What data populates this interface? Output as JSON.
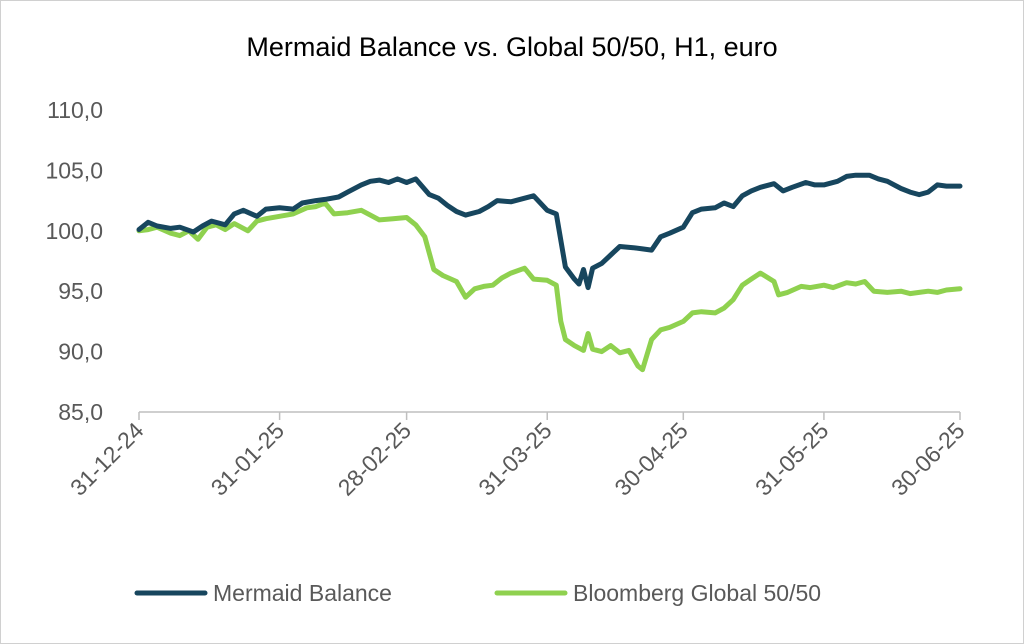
{
  "chart_data": {
    "type": "line",
    "title": "Mermaid Balance vs. Global 50/50, H1, euro",
    "ylim": [
      85,
      110
    ],
    "y_ticks": [
      "110,0",
      "105,0",
      "100,0",
      "95,0",
      "90,0",
      "85,0"
    ],
    "y_tick_values": [
      110,
      105,
      100,
      95,
      90,
      85
    ],
    "x_range": [
      "2024-12-31",
      "2025-06-30"
    ],
    "x_ticks": [
      "31-12-24",
      "31-01-25",
      "28-02-25",
      "31-03-25",
      "30-04-25",
      "31-05-25",
      "30-06-25"
    ],
    "x_tick_dates": [
      "2024-12-31",
      "2025-01-31",
      "2025-02-28",
      "2025-03-31",
      "2025-04-30",
      "2025-05-31",
      "2025-06-30"
    ],
    "grid": false,
    "legend_position": "bottom",
    "series": [
      {
        "name": "Mermaid Balance",
        "color": "#17465E",
        "points": [
          [
            "2024-12-31",
            100.1
          ],
          [
            "2025-01-02",
            100.7
          ],
          [
            "2025-01-04",
            100.4
          ],
          [
            "2025-01-07",
            100.2
          ],
          [
            "2025-01-09",
            100.3
          ],
          [
            "2025-01-12",
            99.9
          ],
          [
            "2025-01-14",
            100.4
          ],
          [
            "2025-01-16",
            100.8
          ],
          [
            "2025-01-19",
            100.5
          ],
          [
            "2025-01-21",
            101.4
          ],
          [
            "2025-01-23",
            101.7
          ],
          [
            "2025-01-26",
            101.2
          ],
          [
            "2025-01-28",
            101.8
          ],
          [
            "2025-01-31",
            101.9
          ],
          [
            "2025-02-03",
            101.8
          ],
          [
            "2025-02-05",
            102.3
          ],
          [
            "2025-02-08",
            102.5
          ],
          [
            "2025-02-10",
            102.6
          ],
          [
            "2025-02-13",
            102.8
          ],
          [
            "2025-02-15",
            103.2
          ],
          [
            "2025-02-18",
            103.8
          ],
          [
            "2025-02-20",
            104.1
          ],
          [
            "2025-02-22",
            104.2
          ],
          [
            "2025-02-24",
            104.0
          ],
          [
            "2025-02-26",
            104.3
          ],
          [
            "2025-02-28",
            104.0
          ],
          [
            "2025-03-02",
            104.3
          ],
          [
            "2025-03-05",
            103.0
          ],
          [
            "2025-03-07",
            102.7
          ],
          [
            "2025-03-09",
            102.1
          ],
          [
            "2025-03-11",
            101.6
          ],
          [
            "2025-03-13",
            101.3
          ],
          [
            "2025-03-16",
            101.6
          ],
          [
            "2025-03-18",
            102.0
          ],
          [
            "2025-03-20",
            102.5
          ],
          [
            "2025-03-23",
            102.4
          ],
          [
            "2025-03-26",
            102.7
          ],
          [
            "2025-03-28",
            102.9
          ],
          [
            "2025-03-31",
            101.7
          ],
          [
            "2025-04-02",
            101.4
          ],
          [
            "2025-04-04",
            97.0
          ],
          [
            "2025-04-06",
            96.0
          ],
          [
            "2025-04-07",
            95.6
          ],
          [
            "2025-04-08",
            96.8
          ],
          [
            "2025-04-09",
            95.3
          ],
          [
            "2025-04-10",
            96.9
          ],
          [
            "2025-04-12",
            97.3
          ],
          [
            "2025-04-14",
            98.0
          ],
          [
            "2025-04-16",
            98.7
          ],
          [
            "2025-04-19",
            98.6
          ],
          [
            "2025-04-21",
            98.5
          ],
          [
            "2025-04-23",
            98.4
          ],
          [
            "2025-04-25",
            99.5
          ],
          [
            "2025-04-27",
            99.8
          ],
          [
            "2025-04-30",
            100.3
          ],
          [
            "2025-05-02",
            101.5
          ],
          [
            "2025-05-04",
            101.8
          ],
          [
            "2025-05-07",
            101.9
          ],
          [
            "2025-05-09",
            102.3
          ],
          [
            "2025-05-11",
            102.0
          ],
          [
            "2025-05-13",
            102.9
          ],
          [
            "2025-05-15",
            103.3
          ],
          [
            "2025-05-17",
            103.6
          ],
          [
            "2025-05-20",
            103.9
          ],
          [
            "2025-05-22",
            103.3
          ],
          [
            "2025-05-24",
            103.6
          ],
          [
            "2025-05-27",
            104.0
          ],
          [
            "2025-05-29",
            103.8
          ],
          [
            "2025-05-31",
            103.8
          ],
          [
            "2025-06-03",
            104.1
          ],
          [
            "2025-06-05",
            104.5
          ],
          [
            "2025-06-07",
            104.6
          ],
          [
            "2025-06-10",
            104.6
          ],
          [
            "2025-06-12",
            104.3
          ],
          [
            "2025-06-14",
            104.1
          ],
          [
            "2025-06-17",
            103.5
          ],
          [
            "2025-06-19",
            103.2
          ],
          [
            "2025-06-21",
            103.0
          ],
          [
            "2025-06-23",
            103.2
          ],
          [
            "2025-06-25",
            103.8
          ],
          [
            "2025-06-27",
            103.7
          ],
          [
            "2025-06-30",
            103.7
          ]
        ]
      },
      {
        "name": "Bloomberg Global 50/50",
        "color": "#8FD14F",
        "points": [
          [
            "2024-12-31",
            100.0
          ],
          [
            "2025-01-02",
            100.1
          ],
          [
            "2025-01-04",
            100.3
          ],
          [
            "2025-01-07",
            99.8
          ],
          [
            "2025-01-09",
            99.6
          ],
          [
            "2025-01-11",
            100.0
          ],
          [
            "2025-01-13",
            99.3
          ],
          [
            "2025-01-15",
            100.3
          ],
          [
            "2025-01-17",
            100.5
          ],
          [
            "2025-01-19",
            100.1
          ],
          [
            "2025-01-21",
            100.6
          ],
          [
            "2025-01-24",
            100.0
          ],
          [
            "2025-01-26",
            100.8
          ],
          [
            "2025-01-28",
            101.0
          ],
          [
            "2025-01-31",
            101.2
          ],
          [
            "2025-02-03",
            101.4
          ],
          [
            "2025-02-06",
            101.9
          ],
          [
            "2025-02-08",
            102.0
          ],
          [
            "2025-02-10",
            102.3
          ],
          [
            "2025-02-12",
            101.4
          ],
          [
            "2025-02-15",
            101.5
          ],
          [
            "2025-02-18",
            101.7
          ],
          [
            "2025-02-20",
            101.3
          ],
          [
            "2025-02-22",
            100.9
          ],
          [
            "2025-02-25",
            101.0
          ],
          [
            "2025-02-28",
            101.1
          ],
          [
            "2025-03-02",
            100.5
          ],
          [
            "2025-03-04",
            99.5
          ],
          [
            "2025-03-06",
            96.8
          ],
          [
            "2025-03-08",
            96.3
          ],
          [
            "2025-03-11",
            95.8
          ],
          [
            "2025-03-13",
            94.5
          ],
          [
            "2025-03-15",
            95.2
          ],
          [
            "2025-03-17",
            95.4
          ],
          [
            "2025-03-19",
            95.5
          ],
          [
            "2025-03-21",
            96.1
          ],
          [
            "2025-03-23",
            96.5
          ],
          [
            "2025-03-26",
            96.9
          ],
          [
            "2025-03-28",
            96.0
          ],
          [
            "2025-03-31",
            95.9
          ],
          [
            "2025-04-02",
            95.5
          ],
          [
            "2025-04-03",
            92.5
          ],
          [
            "2025-04-04",
            91.0
          ],
          [
            "2025-04-06",
            90.5
          ],
          [
            "2025-04-08",
            90.1
          ],
          [
            "2025-04-09",
            91.5
          ],
          [
            "2025-04-10",
            90.2
          ],
          [
            "2025-04-12",
            90.0
          ],
          [
            "2025-04-14",
            90.5
          ],
          [
            "2025-04-16",
            89.9
          ],
          [
            "2025-04-18",
            90.1
          ],
          [
            "2025-04-20",
            88.8
          ],
          [
            "2025-04-21",
            88.5
          ],
          [
            "2025-04-23",
            91.0
          ],
          [
            "2025-04-25",
            91.8
          ],
          [
            "2025-04-27",
            92.0
          ],
          [
            "2025-04-30",
            92.5
          ],
          [
            "2025-05-02",
            93.2
          ],
          [
            "2025-05-04",
            93.3
          ],
          [
            "2025-05-07",
            93.2
          ],
          [
            "2025-05-09",
            93.6
          ],
          [
            "2025-05-11",
            94.3
          ],
          [
            "2025-05-13",
            95.5
          ],
          [
            "2025-05-15",
            96.0
          ],
          [
            "2025-05-17",
            96.5
          ],
          [
            "2025-05-20",
            95.8
          ],
          [
            "2025-05-21",
            94.7
          ],
          [
            "2025-05-23",
            94.9
          ],
          [
            "2025-05-26",
            95.4
          ],
          [
            "2025-05-28",
            95.3
          ],
          [
            "2025-05-31",
            95.5
          ],
          [
            "2025-06-02",
            95.3
          ],
          [
            "2025-06-05",
            95.7
          ],
          [
            "2025-06-07",
            95.6
          ],
          [
            "2025-06-09",
            95.8
          ],
          [
            "2025-06-11",
            95.0
          ],
          [
            "2025-06-14",
            94.9
          ],
          [
            "2025-06-17",
            95.0
          ],
          [
            "2025-06-19",
            94.8
          ],
          [
            "2025-06-21",
            94.9
          ],
          [
            "2025-06-23",
            95.0
          ],
          [
            "2025-06-25",
            94.9
          ],
          [
            "2025-06-27",
            95.1
          ],
          [
            "2025-06-30",
            95.2
          ]
        ]
      }
    ]
  }
}
